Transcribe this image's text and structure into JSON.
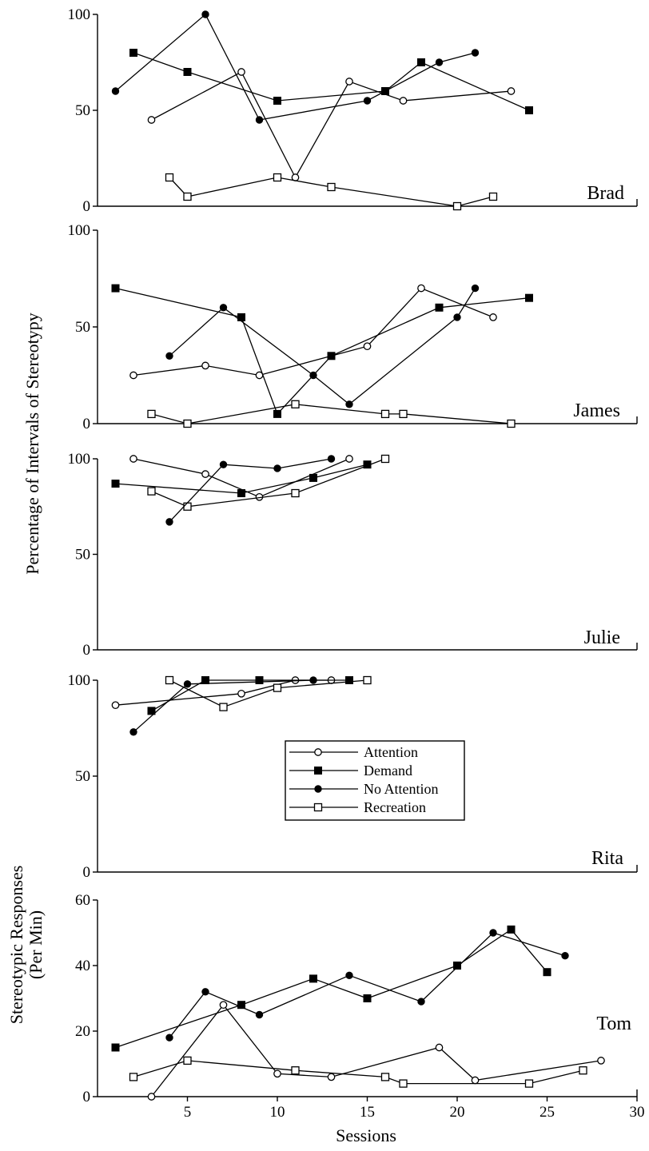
{
  "figure": {
    "ylabel_main": "Percentage of Intervals of Stereotypy",
    "ylabel_tom_line1": "Stereotypic Responses",
    "ylabel_tom_line2": "(Per Min)",
    "xlabel": "Sessions"
  },
  "legend": {
    "items": [
      {
        "name": "Attention",
        "marker": "open-circle"
      },
      {
        "name": "Demand",
        "marker": "filled-square"
      },
      {
        "name": "No Attention",
        "marker": "filled-circle"
      },
      {
        "name": "Recreation",
        "marker": "open-square"
      }
    ]
  },
  "chart_data": [
    {
      "type": "line",
      "panel": "Brad",
      "ylim": [
        0,
        100
      ],
      "yticks": [
        0,
        50,
        100
      ],
      "xlim": [
        0,
        30
      ],
      "series": [
        {
          "name": "No Attention",
          "marker": "filled-circle",
          "points": [
            [
              1,
              60
            ],
            [
              6,
              100
            ],
            [
              9,
              45
            ],
            [
              15,
              55
            ],
            [
              19,
              75
            ],
            [
              21,
              80
            ]
          ]
        },
        {
          "name": "Demand",
          "marker": "filled-square",
          "points": [
            [
              2,
              80
            ],
            [
              5,
              70
            ],
            [
              10,
              55
            ],
            [
              16,
              60
            ],
            [
              18,
              75
            ],
            [
              24,
              50
            ]
          ]
        },
        {
          "name": "Attention",
          "marker": "open-circle",
          "points": [
            [
              3,
              45
            ],
            [
              8,
              70
            ],
            [
              11,
              15
            ],
            [
              14,
              65
            ],
            [
              17,
              55
            ],
            [
              23,
              60
            ]
          ]
        },
        {
          "name": "Recreation",
          "marker": "open-square",
          "points": [
            [
              4,
              15
            ],
            [
              5,
              5
            ],
            [
              10,
              15
            ],
            [
              13,
              10
            ],
            [
              20,
              0
            ],
            [
              22,
              5
            ]
          ]
        }
      ]
    },
    {
      "type": "line",
      "panel": "James",
      "ylim": [
        0,
        100
      ],
      "yticks": [
        0,
        50,
        100
      ],
      "xlim": [
        0,
        30
      ],
      "series": [
        {
          "name": "Demand",
          "marker": "filled-square",
          "points": [
            [
              1,
              70
            ],
            [
              8,
              55
            ],
            [
              10,
              5
            ],
            [
              13,
              35
            ],
            [
              19,
              60
            ],
            [
              24,
              65
            ]
          ]
        },
        {
          "name": "Attention",
          "marker": "open-circle",
          "points": [
            [
              2,
              25
            ],
            [
              6,
              30
            ],
            [
              9,
              25
            ],
            [
              15,
              40
            ],
            [
              18,
              70
            ],
            [
              22,
              55
            ]
          ]
        },
        {
          "name": "No Attention",
          "marker": "filled-circle",
          "points": [
            [
              4,
              35
            ],
            [
              7,
              60
            ],
            [
              12,
              25
            ],
            [
              14,
              10
            ],
            [
              20,
              55
            ],
            [
              21,
              70
            ]
          ]
        },
        {
          "name": "Recreation",
          "marker": "open-square",
          "points": [
            [
              3,
              5
            ],
            [
              5,
              0
            ],
            [
              11,
              10
            ],
            [
              16,
              5
            ],
            [
              17,
              5
            ],
            [
              23,
              0
            ]
          ]
        }
      ]
    },
    {
      "type": "line",
      "panel": "Julie",
      "ylim": [
        0,
        100
      ],
      "yticks": [
        0,
        50,
        100
      ],
      "xlim": [
        0,
        30
      ],
      "series": [
        {
          "name": "Demand",
          "marker": "filled-square",
          "points": [
            [
              1,
              87
            ],
            [
              8,
              82
            ],
            [
              12,
              90
            ],
            [
              15,
              97
            ]
          ]
        },
        {
          "name": "Attention",
          "marker": "open-circle",
          "points": [
            [
              2,
              100
            ],
            [
              6,
              92
            ],
            [
              9,
              80
            ],
            [
              14,
              100
            ]
          ]
        },
        {
          "name": "Recreation",
          "marker": "open-square",
          "points": [
            [
              3,
              83
            ],
            [
              5,
              75
            ],
            [
              11,
              82
            ],
            [
              16,
              100
            ]
          ]
        },
        {
          "name": "No Attention",
          "marker": "filled-circle",
          "points": [
            [
              4,
              67
            ],
            [
              7,
              97
            ],
            [
              10,
              95
            ],
            [
              13,
              100
            ]
          ]
        }
      ]
    },
    {
      "type": "line",
      "panel": "Rita",
      "ylim": [
        0,
        100
      ],
      "yticks": [
        0,
        50,
        100
      ],
      "xlim": [
        0,
        30
      ],
      "series": [
        {
          "name": "Attention",
          "marker": "open-circle",
          "points": [
            [
              1,
              87
            ],
            [
              8,
              93
            ],
            [
              11,
              100
            ],
            [
              13,
              100
            ]
          ]
        },
        {
          "name": "No Attention",
          "marker": "filled-circle",
          "points": [
            [
              2,
              73
            ],
            [
              5,
              98
            ],
            [
              12,
              100
            ]
          ]
        },
        {
          "name": "Demand",
          "marker": "filled-square",
          "points": [
            [
              3,
              84
            ],
            [
              6,
              100
            ],
            [
              9,
              100
            ],
            [
              14,
              100
            ]
          ]
        },
        {
          "name": "Recreation",
          "marker": "open-square",
          "points": [
            [
              4,
              100
            ],
            [
              7,
              86
            ],
            [
              10,
              96
            ],
            [
              15,
              100
            ]
          ]
        }
      ]
    },
    {
      "type": "line",
      "panel": "Tom",
      "ylim": [
        0,
        60
      ],
      "yticks": [
        0,
        20,
        40,
        60
      ],
      "xlim": [
        0,
        30
      ],
      "xticks": [
        5,
        10,
        15,
        20,
        25,
        30
      ],
      "series": [
        {
          "name": "Demand",
          "marker": "filled-square",
          "points": [
            [
              1,
              15
            ],
            [
              8,
              28
            ],
            [
              12,
              36
            ],
            [
              15,
              30
            ],
            [
              20,
              40
            ],
            [
              23,
              51
            ],
            [
              25,
              38
            ]
          ]
        },
        {
          "name": "No Attention",
          "marker": "filled-circle",
          "points": [
            [
              4,
              18
            ],
            [
              6,
              32
            ],
            [
              9,
              25
            ],
            [
              14,
              37
            ],
            [
              18,
              29
            ],
            [
              22,
              50
            ],
            [
              26,
              43
            ]
          ]
        },
        {
          "name": "Attention",
          "marker": "open-circle",
          "points": [
            [
              3,
              0
            ],
            [
              7,
              28
            ],
            [
              10,
              7
            ],
            [
              13,
              6
            ],
            [
              19,
              15
            ],
            [
              21,
              5
            ],
            [
              28,
              11
            ]
          ]
        },
        {
          "name": "Recreation",
          "marker": "open-square",
          "points": [
            [
              2,
              6
            ],
            [
              5,
              11
            ],
            [
              11,
              8
            ],
            [
              16,
              6
            ],
            [
              17,
              4
            ],
            [
              24,
              4
            ],
            [
              27,
              8
            ]
          ]
        }
      ]
    }
  ]
}
